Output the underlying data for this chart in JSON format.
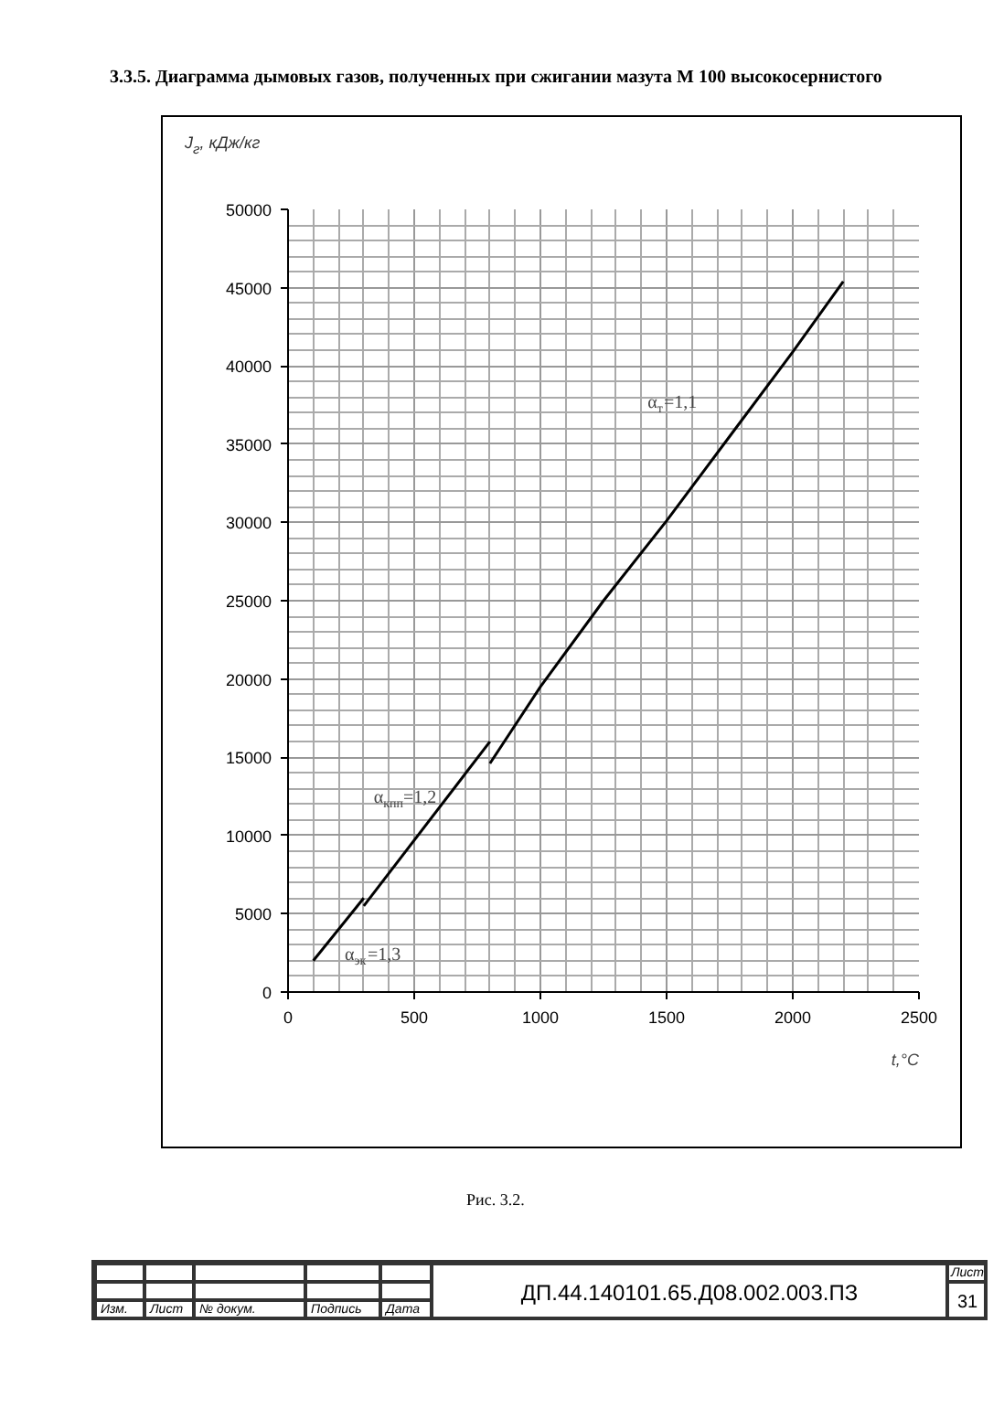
{
  "chart_data": {
    "type": "line",
    "title": "3.3.5. Диаграмма дымовых газов, полученных при сжигании мазута М 100 высокосернистого",
    "xlabel": "t,°C",
    "ylabel": "J$_{г}$, кДж/кг",
    "xlim": [
      0,
      2500
    ],
    "ylim": [
      0,
      50000
    ],
    "xticks": [
      0,
      500,
      1000,
      1500,
      2000,
      2500
    ],
    "yticks": [
      0,
      5000,
      10000,
      15000,
      20000,
      25000,
      30000,
      35000,
      40000,
      45000,
      50000
    ],
    "grid": true,
    "marker": "none",
    "line_style": "solid",
    "series": [
      {
        "color": "#000000",
        "x": [
          800,
          1000,
          1250,
          1500,
          1750,
          2000,
          2200
        ],
        "values": [
          14600,
          19500,
          25000,
          30100,
          35500,
          40900,
          45400
        ]
      },
      {
        "color": "#000000",
        "x": [
          300,
          800
        ],
        "values": [
          5500,
          16000
        ]
      },
      {
        "color": "#000000",
        "x": [
          100,
          300
        ],
        "values": [
          2000,
          6000
        ]
      }
    ],
    "annotations": [
      "α$_{т}$=1,1",
      "α$_{кпп}$=1,2",
      "α$_{эк}$=1,3",
      "Рис. 3.2.",
      "Изм.",
      "Лист",
      "№ докум.",
      "Подпись",
      "Дата",
      "ДП.44.140101.65.Д08.002.003.ПЗ",
      "Лист",
      "31"
    ]
  }
}
